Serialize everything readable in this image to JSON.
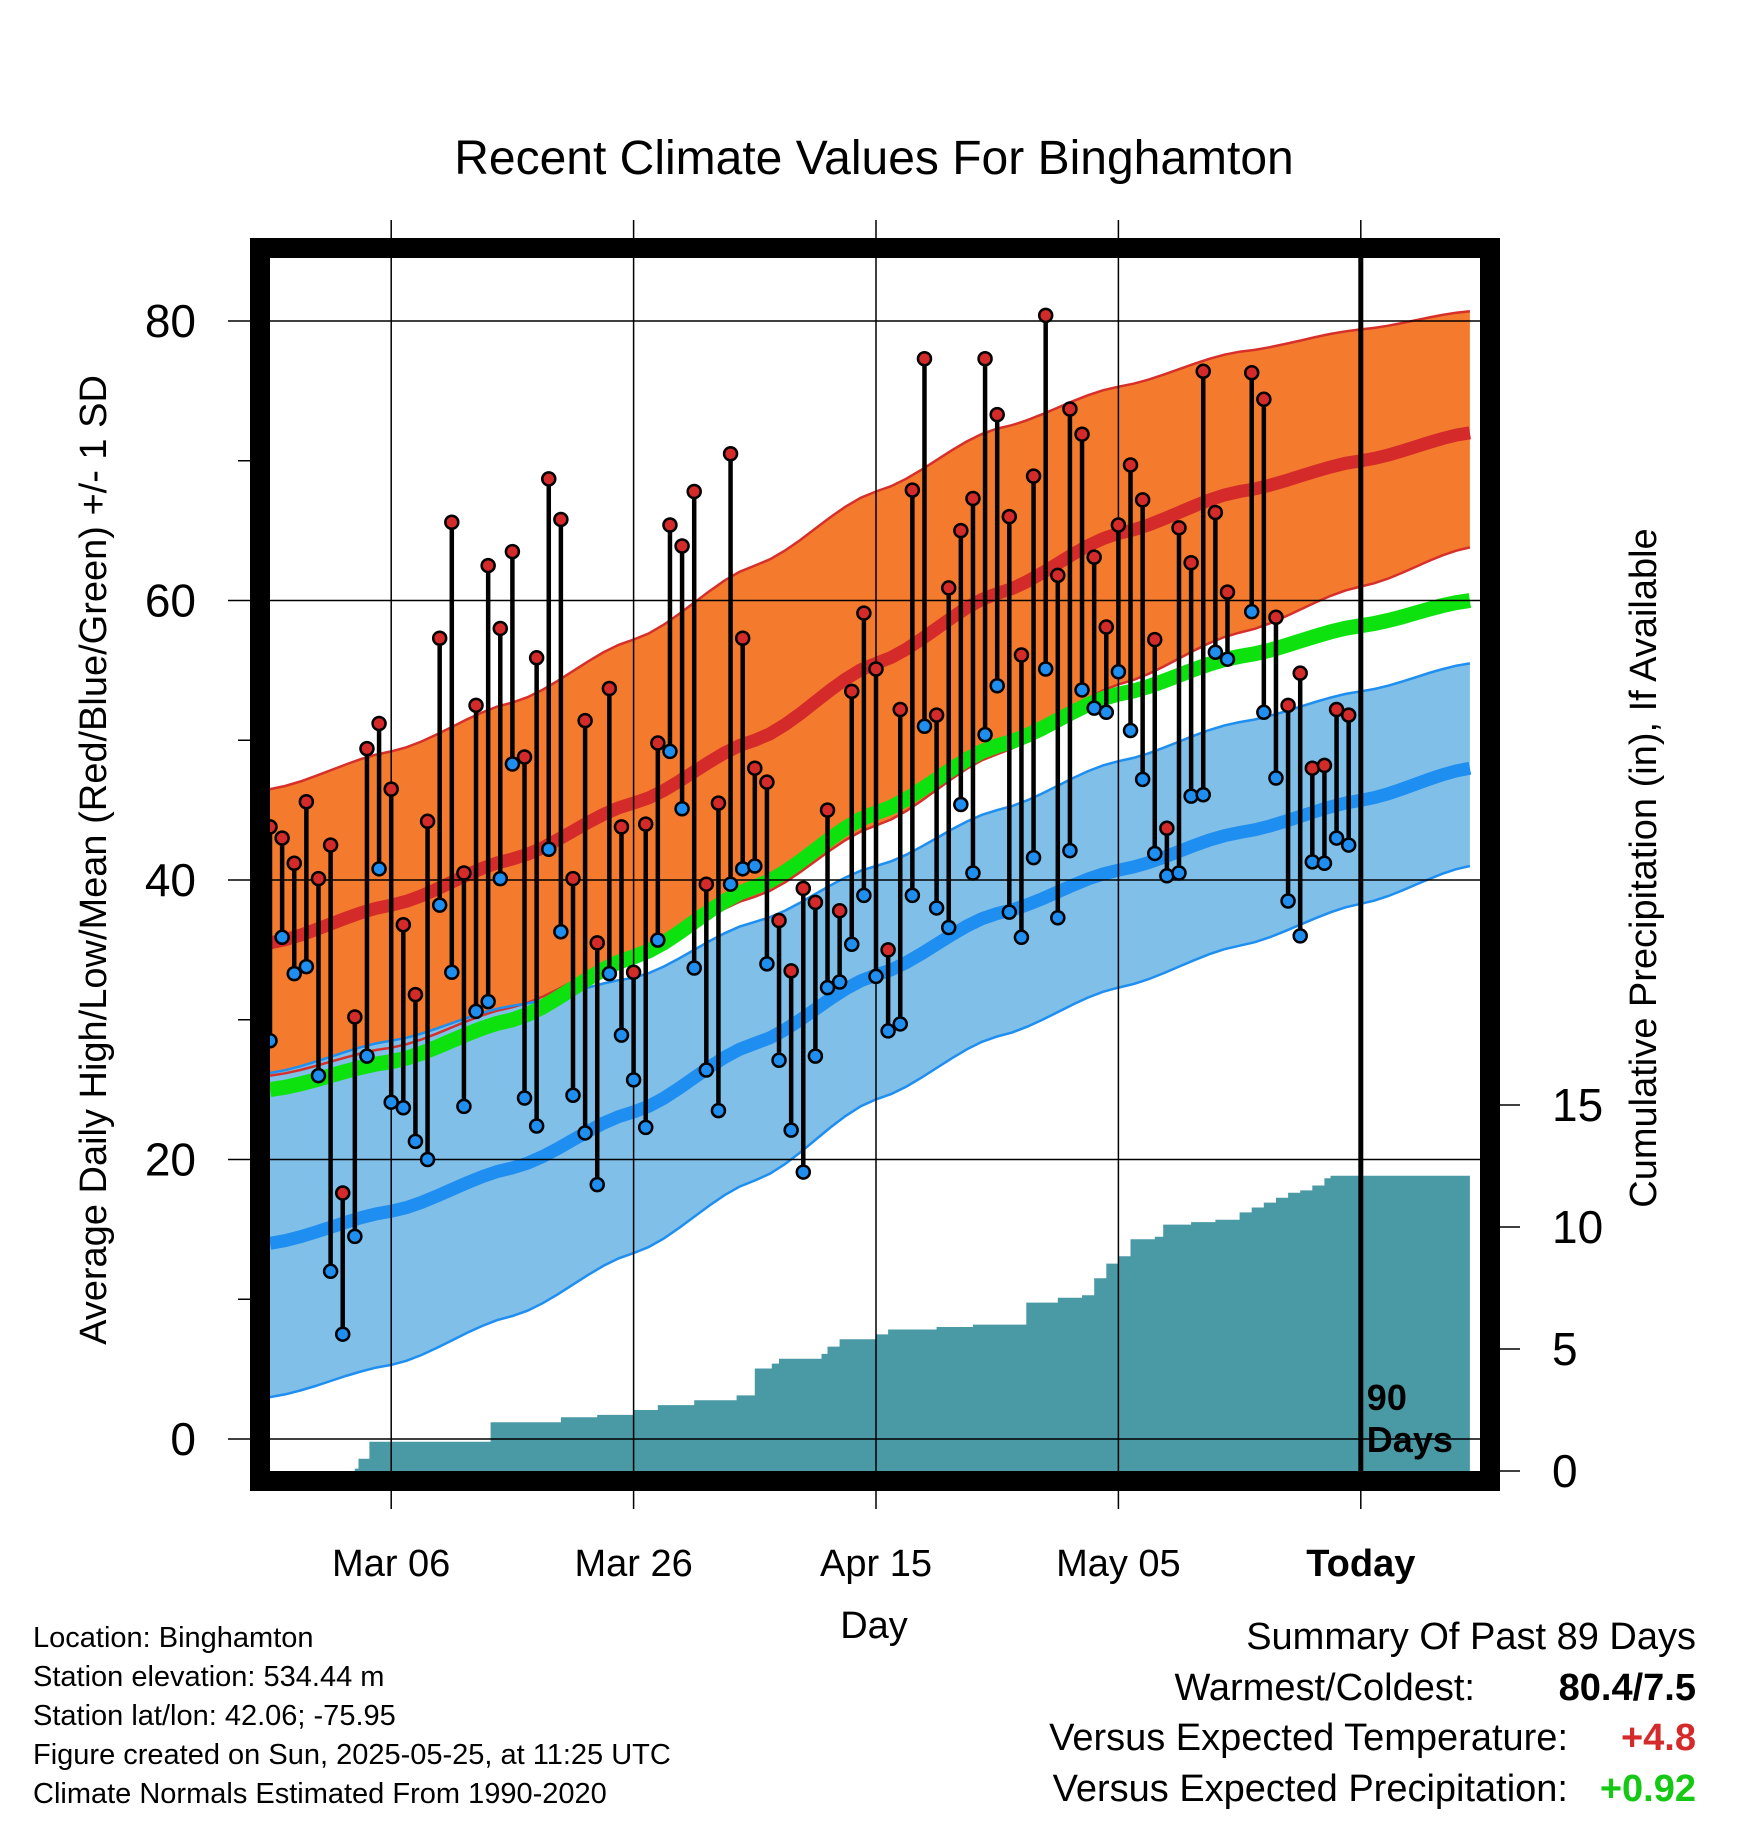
{
  "chart_data": {
    "type": "line",
    "title": "Recent Climate Values For Binghamton",
    "xlabel": "Day",
    "ylabel_left": "Average Daily High/Low/Mean (Red/Blue/Green) +/- 1 SD",
    "ylabel_right": "Cumulative Precipitation (in), If Available",
    "x_range_days": [
      0,
      99
    ],
    "ylim_temp": [
      -2,
      86
    ],
    "ylim_precip": [
      0,
      29.5
    ],
    "x_ticks": [
      {
        "day": 10,
        "label": "Mar 06"
      },
      {
        "day": 30,
        "label": "Mar 26"
      },
      {
        "day": 50,
        "label": "Apr 15"
      },
      {
        "day": 70,
        "label": "May 05"
      },
      {
        "day": 90,
        "label": "Today"
      }
    ],
    "y_ticks_temp": [
      "0",
      "20",
      "40",
      "60",
      "80"
    ],
    "y_ticks_precip": [
      "0",
      "5",
      "10",
      "15"
    ],
    "today_day": 90,
    "today_label": [
      "90",
      "Days"
    ],
    "colors": {
      "high_band": "#f47b2e",
      "high_line": "#d42a2a",
      "high_edge": "#d6302a",
      "low_band": "#7fbfe8",
      "low_line": "#1e8ef0",
      "low_edge": "#1e8ef0",
      "mean_line": "#0ee20e",
      "precip": "#4a9aa5",
      "high_dot": "#d42a2a",
      "low_dot": "#1e8ef0"
    },
    "normals": {
      "days": [
        0,
        10,
        20,
        30,
        40,
        50,
        60,
        70,
        80,
        90,
        99
      ],
      "high_mean": [
        35.5,
        38.2,
        41.5,
        45.5,
        50.0,
        55.5,
        60.5,
        64.8,
        67.8,
        70.0,
        72.0
      ],
      "high_sd_upper": [
        46.5,
        49.2,
        52.7,
        57.2,
        62.5,
        67.8,
        72.3,
        75.3,
        77.8,
        79.4,
        80.7
      ],
      "high_sd_lower": [
        26.0,
        28.0,
        30.9,
        34.6,
        38.8,
        43.9,
        49.0,
        54.0,
        57.7,
        61.0,
        63.8
      ],
      "mean": [
        25.0,
        27.0,
        30.0,
        34.5,
        39.5,
        44.8,
        49.6,
        53.3,
        56.0,
        58.2,
        60.0
      ],
      "low_mean": [
        14.0,
        16.3,
        19.4,
        23.4,
        28.3,
        33.2,
        37.6,
        40.7,
        43.4,
        45.7,
        48.0
      ],
      "low_sd_upper": [
        26.2,
        28.5,
        31.0,
        33.0,
        37.0,
        41.0,
        45.0,
        48.5,
        51.3,
        53.5,
        55.5
      ],
      "low_sd_lower": [
        3.0,
        5.3,
        8.8,
        13.3,
        18.5,
        24.3,
        28.8,
        32.3,
        35.3,
        38.3,
        41.0
      ]
    },
    "observations": {
      "days": [
        0,
        1,
        2,
        3,
        4,
        5,
        6,
        7,
        8,
        9,
        10,
        11,
        12,
        13,
        14,
        15,
        16,
        17,
        18,
        19,
        20,
        21,
        22,
        23,
        24,
        25,
        26,
        27,
        28,
        29,
        30,
        31,
        32,
        33,
        34,
        35,
        36,
        37,
        38,
        39,
        40,
        41,
        42,
        43,
        44,
        45,
        46,
        47,
        48,
        49,
        50,
        51,
        52,
        53,
        54,
        55,
        56,
        57,
        58,
        59,
        60,
        61,
        62,
        63,
        64,
        65,
        66,
        67,
        68,
        69,
        70,
        71,
        72,
        73,
        74,
        75,
        76,
        77,
        78,
        79,
        80,
        81,
        82,
        83,
        84,
        85,
        86,
        87,
        88,
        89
      ],
      "high": [
        43.8,
        43.0,
        41.2,
        45.6,
        40.1,
        42.5,
        17.6,
        30.2,
        49.4,
        51.2,
        46.5,
        36.8,
        31.8,
        44.2,
        57.3,
        65.6,
        40.5,
        52.5,
        62.5,
        58.0,
        63.5,
        48.8,
        55.9,
        68.7,
        65.8,
        40.1,
        51.4,
        35.5,
        53.7,
        43.8,
        33.4,
        44.0,
        49.8,
        65.4,
        63.9,
        67.8,
        39.7,
        45.5,
        70.5,
        57.3,
        48.0,
        47.0,
        37.1,
        33.5,
        39.4,
        38.4,
        45.0,
        37.8,
        53.5,
        59.1,
        55.1,
        35.0,
        52.2,
        67.9,
        77.3,
        51.8,
        60.9,
        65.0,
        67.3,
        77.3,
        73.3,
        66.0,
        56.1,
        68.9,
        80.4,
        61.8,
        73.7,
        71.9,
        63.1,
        58.1,
        65.4,
        69.7,
        67.2,
        57.2,
        43.7,
        65.2,
        62.7,
        76.4,
        66.3,
        60.6,
        null,
        76.3,
        74.4,
        58.8,
        52.5,
        54.8,
        48.0,
        48.2,
        52.2,
        51.8
      ],
      "low": [
        28.5,
        35.9,
        33.3,
        33.8,
        26.0,
        12.0,
        7.5,
        14.5,
        27.4,
        40.8,
        24.1,
        23.7,
        21.3,
        20.0,
        38.2,
        33.4,
        23.8,
        30.6,
        31.3,
        40.1,
        48.3,
        24.4,
        22.4,
        42.2,
        36.3,
        24.6,
        21.9,
        18.2,
        33.3,
        28.9,
        25.7,
        22.3,
        35.7,
        49.2,
        45.1,
        33.7,
        26.4,
        23.5,
        39.7,
        40.8,
        41.0,
        34.0,
        27.1,
        22.1,
        19.1,
        27.4,
        32.3,
        32.7,
        35.4,
        38.9,
        33.1,
        29.2,
        29.7,
        38.9,
        51.0,
        38.0,
        36.6,
        45.4,
        40.5,
        50.4,
        53.9,
        37.7,
        35.9,
        41.6,
        55.1,
        37.3,
        42.1,
        53.6,
        52.3,
        52.0,
        54.9,
        50.7,
        47.2,
        41.9,
        40.3,
        40.5,
        46.0,
        46.1,
        56.3,
        55.8,
        null,
        59.2,
        52.0,
        47.3,
        38.5,
        36.0,
        41.3,
        41.2,
        43.0,
        42.5
      ]
    },
    "precip_cumulative": {
      "days": [
        0,
        7,
        7.3,
        8.2,
        17,
        18.2,
        20,
        24,
        25,
        27,
        30,
        32,
        35,
        37,
        38.5,
        40,
        41.4,
        42,
        44,
        45.5,
        46,
        47,
        49,
        50,
        51,
        53,
        55,
        58,
        61,
        62.4,
        65,
        67,
        68,
        69,
        70,
        71,
        73,
        73.7,
        76,
        78,
        80,
        81,
        82,
        83,
        84,
        85,
        86,
        87,
        87.5,
        99
      ],
      "values": [
        0,
        0.1,
        0.5,
        1.2,
        1.2,
        2.0,
        2.0,
        2.2,
        2.2,
        2.3,
        2.5,
        2.7,
        2.9,
        2.9,
        3.1,
        4.2,
        4.4,
        4.6,
        4.6,
        4.8,
        5.1,
        5.4,
        5.4,
        5.6,
        5.8,
        5.8,
        5.9,
        6.0,
        6.0,
        6.9,
        7.1,
        7.2,
        7.9,
        8.5,
        8.8,
        9.5,
        9.6,
        10.1,
        10.2,
        10.3,
        10.6,
        10.8,
        11.0,
        11.2,
        11.4,
        11.5,
        11.7,
        12.0,
        12.1,
        12.1
      ]
    }
  },
  "footer_info": {
    "location": "Location: Binghamton",
    "elevation": "Station elevation: 534.44 m",
    "latlon": "Station lat/lon: 42.06; -75.95",
    "created": "Figure created on Sun, 2025-05-25, at 11:25 UTC",
    "normals": "Climate Normals Estimated From 1990-2020"
  },
  "summary": {
    "title": "Summary Of Past 89 Days",
    "warmest_label": "Warmest/Coldest:",
    "warmest_value": "80.4/7.5",
    "temp_label": "Versus Expected Temperature:",
    "temp_value": "+4.8",
    "temp_color": "#d42a2a",
    "precip_label": "Versus Expected Precipitation:",
    "precip_value": "+0.92",
    "precip_color": "#14c814"
  }
}
